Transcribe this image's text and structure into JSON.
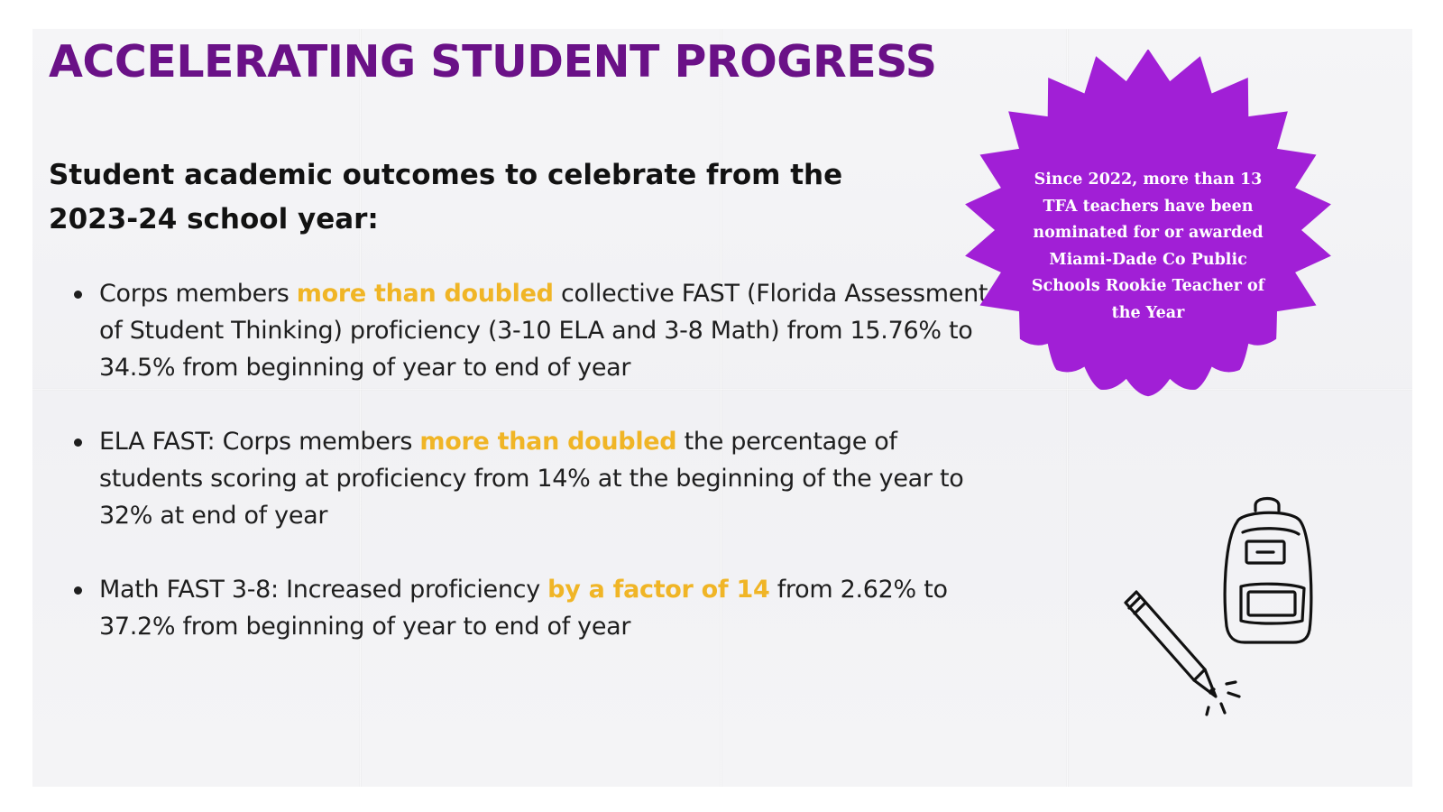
{
  "title": "ACCELERATING STUDENT PROGRESS",
  "subtitle": "Student academic outcomes to celebrate from the 2023-24 school year:",
  "bullets": [
    {
      "pre": "Corps members ",
      "highlight": "more than doubled",
      "post": " collective FAST (Florida Assessment of Student Thinking) proficiency (3-10 ELA and 3-8 Math) from 15.76% to 34.5% from beginning of year to end of year"
    },
    {
      "pre": "ELA FAST: Corps members ",
      "highlight": "more than doubled",
      "post": " the percentage of students scoring at proficiency from 14% at the beginning of the year to 32% at end of year"
    },
    {
      "pre": "Math FAST 3-8: Increased proficiency ",
      "highlight": "by a factor of 14",
      "post": " from 2.62% to 37.2% from beginning of year to end of year"
    }
  ],
  "callout": {
    "text": "Since 2022, more than 13 TFA teachers have been nominated for or awarded Miami-Dade Co Public Schools Rookie Teacher of the Year"
  },
  "icons": {
    "backpack": "backpack-icon",
    "pencil": "pencil-icon"
  },
  "colors": {
    "title": "#6a1187",
    "highlight": "#f0b526",
    "burst": "#a11fd6",
    "text": "#1e1e1e"
  }
}
